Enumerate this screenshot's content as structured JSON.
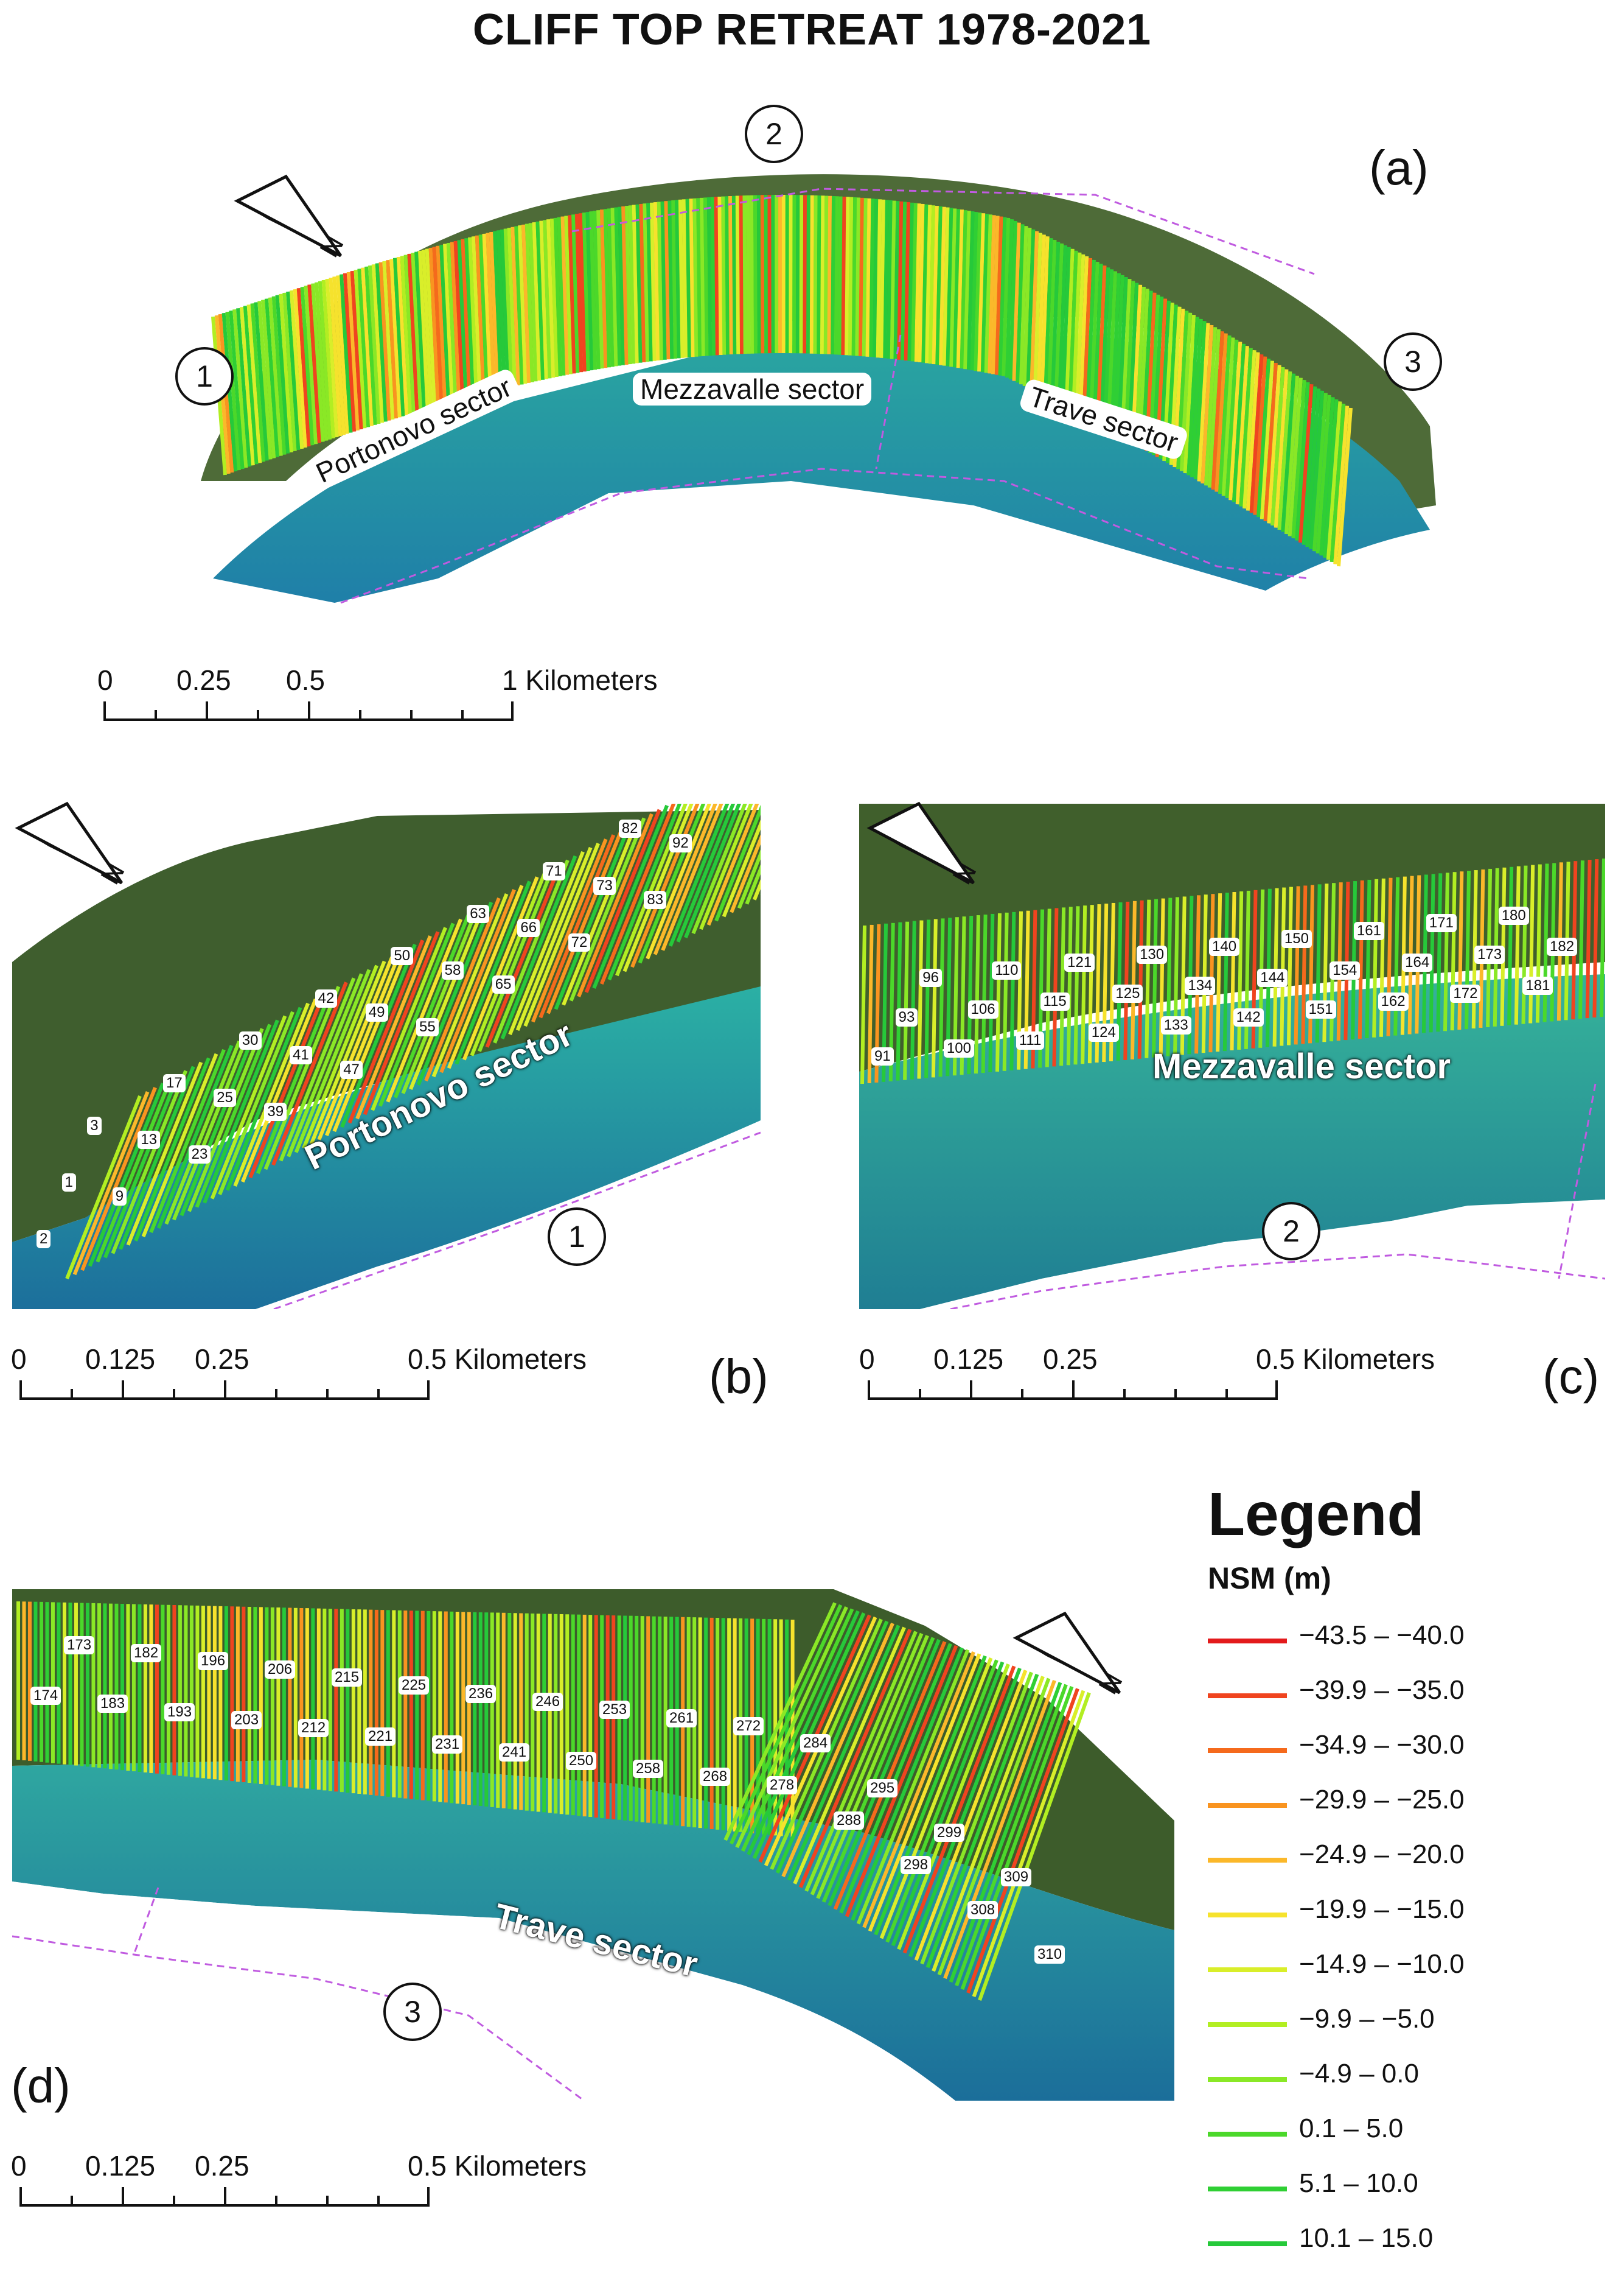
{
  "title": "CLIFF TOP RETREAT 1978-2021",
  "panel_a": {
    "label": "(a)",
    "markers": [
      "1",
      "2",
      "3"
    ],
    "sectors": [
      "Portonovo sector",
      "Mezzavalle sector",
      "Trave sector"
    ],
    "scale": {
      "ticks": [
        "0",
        "0.25",
        "0.5",
        "1 Kilometers"
      ]
    },
    "north_arrow_label": "N"
  },
  "panel_b": {
    "label": "(b)",
    "marker": "1",
    "sector": "Portonovo sector",
    "transects": [
      "2",
      "1",
      "3",
      "9",
      "13",
      "17",
      "23",
      "25",
      "30",
      "39",
      "41",
      "42",
      "47",
      "49",
      "50",
      "55",
      "58",
      "63",
      "65",
      "66",
      "71",
      "72",
      "73",
      "82",
      "83",
      "92"
    ],
    "scale": {
      "ticks": [
        "0",
        "0.125",
        "0.25",
        "0.5 Kilometers"
      ]
    },
    "north_arrow_label": "N"
  },
  "panel_c": {
    "label": "(c)",
    "marker": "2",
    "sector": "Mezzavalle sector",
    "transects": [
      "91",
      "93",
      "96",
      "100",
      "106",
      "110",
      "111",
      "115",
      "121",
      "124",
      "125",
      "130",
      "133",
      "134",
      "140",
      "142",
      "144",
      "150",
      "151",
      "154",
      "161",
      "162",
      "164",
      "171",
      "172",
      "173",
      "180",
      "181",
      "182"
    ],
    "scale": {
      "ticks": [
        "0",
        "0.125",
        "0.25",
        "0.5 Kilometers"
      ]
    },
    "north_arrow_label": "N"
  },
  "panel_d": {
    "label": "(d)",
    "marker": "3",
    "sector": "Trave sector",
    "transects": [
      "174",
      "173",
      "183",
      "182",
      "193",
      "196",
      "203",
      "206",
      "212",
      "215",
      "221",
      "225",
      "231",
      "236",
      "241",
      "246",
      "250",
      "253",
      "258",
      "261",
      "268",
      "272",
      "278",
      "284",
      "288",
      "295",
      "298",
      "299",
      "308",
      "309",
      "310"
    ],
    "scale": {
      "ticks": [
        "0",
        "0.125",
        "0.25",
        "0.5 Kilometers"
      ]
    },
    "north_arrow_label": "N"
  },
  "legend": {
    "title": "Legend",
    "subtitle": "NSM (m)",
    "classes": [
      {
        "label": "−43.5 – −40.0",
        "color": "#e31a1c"
      },
      {
        "label": "−39.9 – −35.0",
        "color": "#f0441f"
      },
      {
        "label": "−34.9 – −30.0",
        "color": "#f56a1c"
      },
      {
        "label": "−29.9 – −25.0",
        "color": "#f99420"
      },
      {
        "label": "−24.9 – −20.0",
        "color": "#fbb82a"
      },
      {
        "label": "−19.9 – −15.0",
        "color": "#f6e22d"
      },
      {
        "label": "−14.9 – −10.0",
        "color": "#d9ee2a"
      },
      {
        "label": "−9.9 – −5.0",
        "color": "#b2ee22"
      },
      {
        "label": "−4.9 – 0.0",
        "color": "#8ae826"
      },
      {
        "label": "0.1 – 5.0",
        "color": "#4bd82a"
      },
      {
        "label": "5.1 – 10.0",
        "color": "#2fcf34"
      },
      {
        "label": "10.1 – 15.0",
        "color": "#26c93a"
      }
    ]
  }
}
